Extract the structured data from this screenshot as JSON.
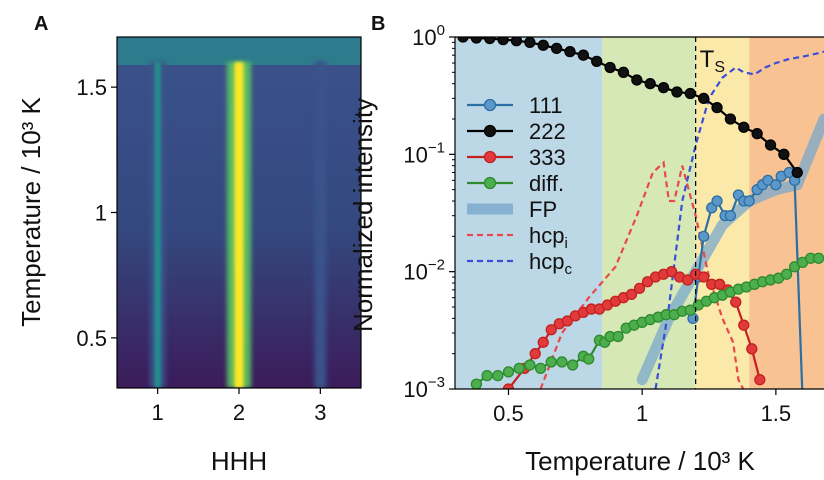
{
  "chart_data": [
    {
      "panel_label": "A",
      "type": "heatmap",
      "xlabel": "HHH",
      "ylabel": "Temperature / 10³ K",
      "xlim": [
        0.5,
        3.5
      ],
      "ylim": [
        0.3,
        1.7
      ],
      "x_ticks": [
        {
          "value": 1,
          "label": "1"
        },
        {
          "value": 2,
          "label": "2"
        },
        {
          "value": 3,
          "label": "3"
        }
      ],
      "y_ticks": [
        {
          "value": 0.5,
          "label": "0.5"
        },
        {
          "value": 1.0,
          "label": "1"
        },
        {
          "value": 1.5,
          "label": "1.5"
        }
      ],
      "colormap": [
        "#440154",
        "#3b528b",
        "#21918c",
        "#5ec962",
        "#fde725"
      ],
      "streaks": [
        {
          "hhh": 1.0,
          "peak_intensity": 0.55,
          "t_range": [
            0.3,
            1.6
          ]
        },
        {
          "hhh": 2.0,
          "peak_intensity": 1.0,
          "t_range": [
            0.3,
            1.6
          ]
        },
        {
          "hhh": 3.0,
          "peak_intensity": 0.35,
          "t_range": [
            0.3,
            1.6
          ]
        }
      ],
      "band_above_T": 1.6
    },
    {
      "panel_label": "B",
      "type": "line",
      "xlabel": "Temperature / 10³ K",
      "ylabel": "Normalized intensity",
      "yscale": "log",
      "xlim": [
        0.3,
        1.68
      ],
      "ylim": [
        0.001,
        1.0
      ],
      "x_ticks": [
        {
          "value": 0.5,
          "label": "0.5"
        },
        {
          "value": 1.0,
          "label": "1"
        },
        {
          "value": 1.5,
          "label": "1.5"
        }
      ],
      "y_ticks": [
        {
          "value": 1.0,
          "base": "10",
          "exp": "0"
        },
        {
          "value": 0.1,
          "base": "10",
          "exp": "−1"
        },
        {
          "value": 0.01,
          "base": "10",
          "exp": "−2"
        },
        {
          "value": 0.001,
          "base": "10",
          "exp": "−3"
        }
      ],
      "regions": [
        {
          "from": 0.3,
          "to": 0.85,
          "color": "#bcd7e6"
        },
        {
          "from": 0.85,
          "to": 1.2,
          "color": "#d6e8b5"
        },
        {
          "from": 1.2,
          "to": 1.4,
          "color": "#fbe9aa"
        },
        {
          "from": 1.4,
          "to": 1.68,
          "color": "#f8c293"
        }
      ],
      "annotations": [
        {
          "text": "T",
          "sub": "S",
          "x": 1.2
        }
      ],
      "series": [
        {
          "name": "111",
          "kind": "marker-line",
          "color": "#2c6fa5",
          "fill": "#5b97c9",
          "x": [
            1.19,
            1.21,
            1.23,
            1.26,
            1.28,
            1.31,
            1.33,
            1.36,
            1.38,
            1.4,
            1.43,
            1.45,
            1.47,
            1.5,
            1.52,
            1.55,
            1.57,
            1.6
          ],
          "y": [
            0.004,
            0.009,
            0.02,
            0.035,
            0.04,
            0.03,
            0.03,
            0.045,
            0.04,
            0.04,
            0.05,
            0.055,
            0.06,
            0.055,
            0.065,
            0.07,
            0.06,
            0.0008
          ]
        },
        {
          "name": "222",
          "kind": "marker-line",
          "color": "#000000",
          "fill": "#111111",
          "x": [
            0.33,
            0.38,
            0.43,
            0.48,
            0.53,
            0.58,
            0.63,
            0.68,
            0.73,
            0.78,
            0.83,
            0.88,
            0.93,
            0.98,
            1.03,
            1.08,
            1.13,
            1.18,
            1.23,
            1.28,
            1.33,
            1.38,
            1.43,
            1.48,
            1.53,
            1.58
          ],
          "y": [
            1.0,
            0.98,
            0.97,
            0.95,
            0.93,
            0.9,
            0.85,
            0.8,
            0.75,
            0.7,
            0.62,
            0.55,
            0.5,
            0.43,
            0.4,
            0.37,
            0.34,
            0.33,
            0.3,
            0.25,
            0.2,
            0.17,
            0.15,
            0.12,
            0.1,
            0.07
          ]
        },
        {
          "name": "333",
          "kind": "marker-line",
          "color": "#c42020",
          "fill": "#e03a3a",
          "x": [
            0.5,
            0.56,
            0.6,
            0.63,
            0.66,
            0.69,
            0.72,
            0.75,
            0.78,
            0.81,
            0.84,
            0.87,
            0.9,
            0.93,
            0.96,
            0.99,
            1.02,
            1.05,
            1.08,
            1.11,
            1.14,
            1.17,
            1.2,
            1.23,
            1.26,
            1.29,
            1.32,
            1.35,
            1.38,
            1.41,
            1.44
          ],
          "y": [
            0.001,
            0.0015,
            0.002,
            0.0025,
            0.0032,
            0.0036,
            0.0038,
            0.0042,
            0.0045,
            0.0048,
            0.0048,
            0.0052,
            0.0056,
            0.006,
            0.0064,
            0.0072,
            0.0082,
            0.009,
            0.0095,
            0.01,
            0.009,
            0.0085,
            0.0095,
            0.009,
            0.0078,
            0.0078,
            0.007,
            0.0055,
            0.0035,
            0.0022,
            0.0012
          ]
        },
        {
          "name": "diff.",
          "kind": "marker-line",
          "color": "#2e8a2e",
          "fill": "#4cae4c",
          "x": [
            0.38,
            0.42,
            0.46,
            0.5,
            0.54,
            0.58,
            0.62,
            0.66,
            0.7,
            0.74,
            0.78,
            0.8,
            0.84,
            0.86,
            0.88,
            0.91,
            0.94,
            0.97,
            1.0,
            1.03,
            1.06,
            1.09,
            1.12,
            1.15,
            1.18,
            1.21,
            1.24,
            1.27,
            1.3,
            1.33,
            1.36,
            1.39,
            1.42,
            1.45,
            1.48,
            1.51,
            1.54,
            1.57,
            1.6,
            1.63,
            1.66
          ],
          "y": [
            0.0011,
            0.0013,
            0.0013,
            0.0014,
            0.0015,
            0.0016,
            0.0015,
            0.0017,
            0.0017,
            0.0016,
            0.0019,
            0.0018,
            0.0026,
            0.0025,
            0.0028,
            0.0028,
            0.0033,
            0.0035,
            0.0037,
            0.0039,
            0.0041,
            0.0043,
            0.0043,
            0.0046,
            0.0047,
            0.0052,
            0.0056,
            0.006,
            0.0063,
            0.0067,
            0.0071,
            0.0074,
            0.0078,
            0.0082,
            0.0085,
            0.0088,
            0.0095,
            0.011,
            0.012,
            0.013,
            0.013
          ]
        },
        {
          "name": "FP",
          "kind": "band",
          "color": "#7aa8cc",
          "x": [
            1.0,
            1.1,
            1.2,
            1.3,
            1.4,
            1.5,
            1.58,
            1.68
          ],
          "y": [
            0.0012,
            0.004,
            0.01,
            0.025,
            0.04,
            0.05,
            0.055,
            0.2
          ]
        },
        {
          "name": "hcp",
          "sub": "i",
          "kind": "dashed",
          "color": "#e8484a",
          "x": [
            0.62,
            0.7,
            0.8,
            0.9,
            0.98,
            1.04,
            1.08,
            1.1,
            1.12,
            1.15,
            1.2,
            1.25,
            1.3,
            1.34,
            1.36,
            1.4
          ],
          "y": [
            0.001,
            0.003,
            0.006,
            0.011,
            0.03,
            0.07,
            0.085,
            0.04,
            0.04,
            0.08,
            0.03,
            0.009,
            0.004,
            0.0025,
            0.0012,
            0.0008
          ]
        },
        {
          "name": "hcp",
          "sub": "c",
          "kind": "dashed",
          "color": "#3a4fd8",
          "x": [
            1.05,
            1.1,
            1.15,
            1.2,
            1.25,
            1.3,
            1.35,
            1.38,
            1.42,
            1.46,
            1.5,
            1.55,
            1.6,
            1.65,
            1.68
          ],
          "y": [
            0.001,
            0.005,
            0.04,
            0.12,
            0.3,
            0.45,
            0.55,
            0.5,
            0.48,
            0.55,
            0.6,
            0.65,
            0.68,
            0.72,
            0.75
          ]
        }
      ]
    }
  ]
}
